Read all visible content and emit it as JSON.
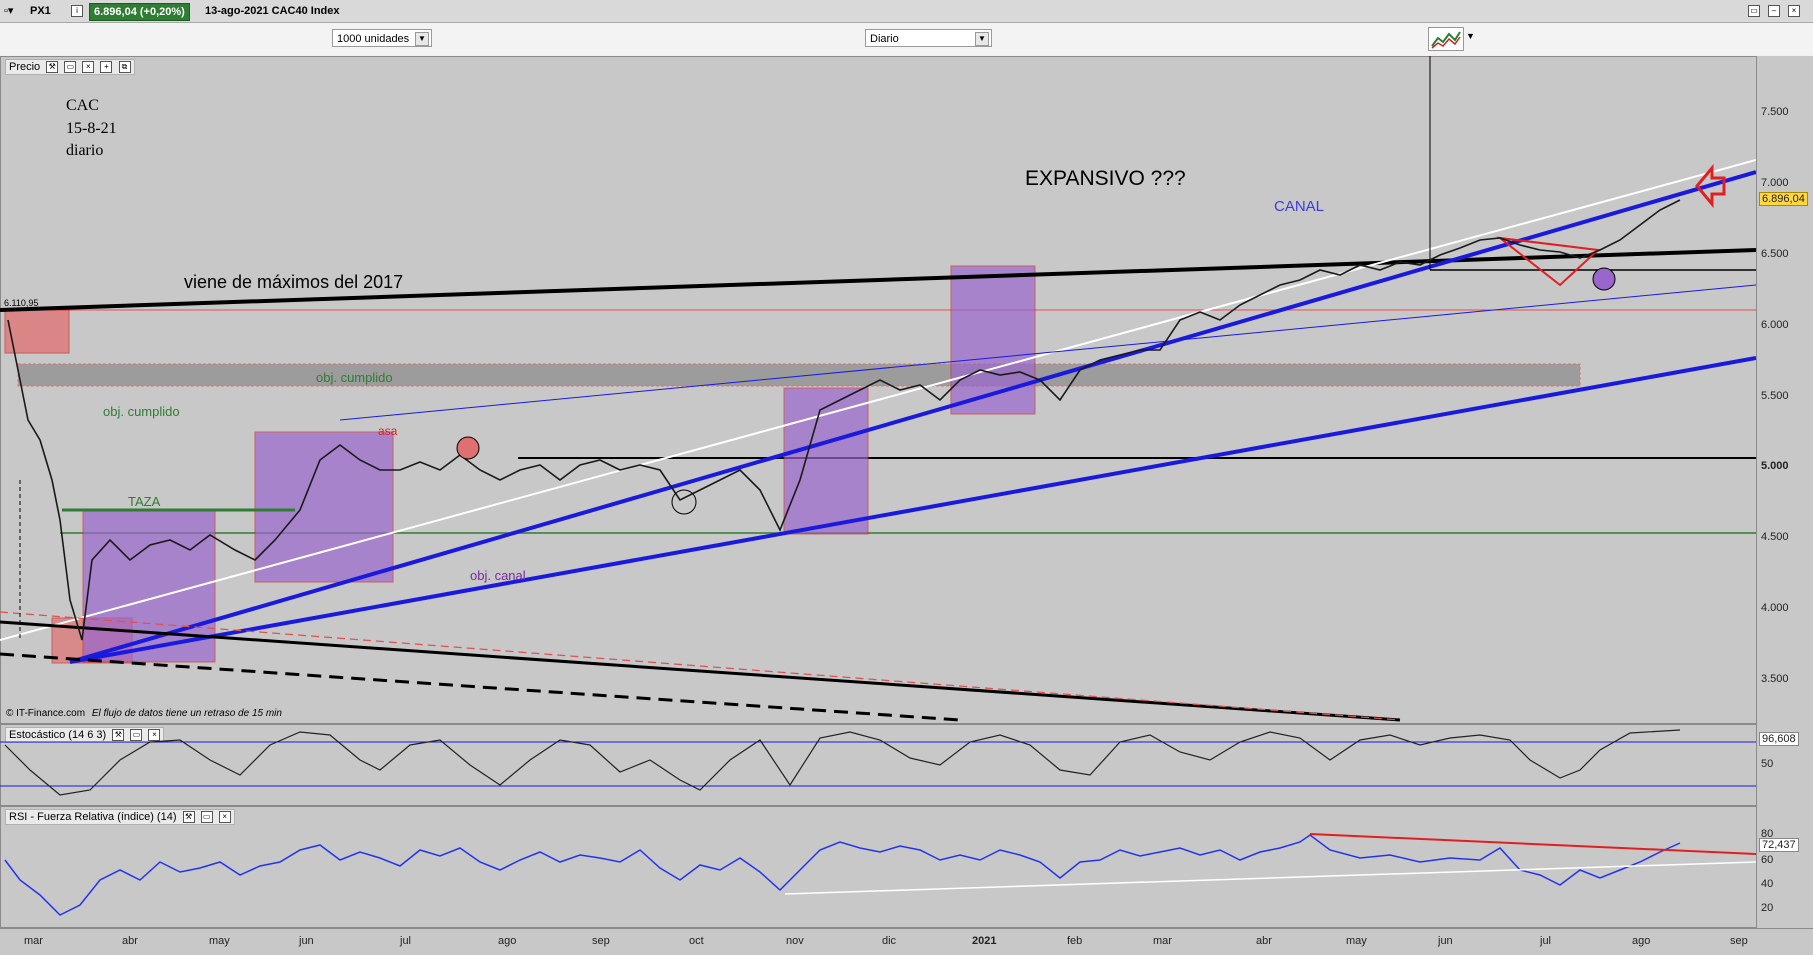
{
  "titlebar": {
    "ticker": "PX1",
    "price": "6.896,04 (+0,20%)",
    "date_index": "13-ago-2021 CAC40 Index"
  },
  "toolbar": {
    "units_value": "1000 unidades",
    "period_value": "Diario"
  },
  "price_panel": {
    "header": "Precio",
    "copyright": "© IT-Finance.com",
    "delay_note": "El flujo de datos tiene un retraso de 15 min",
    "last_value": "6.896,04",
    "level_label": "6.110,95",
    "y_ticks": [
      "7.500",
      "7.000",
      "6.500",
      "6.000",
      "5.500",
      "5.000",
      "4.500",
      "4.000",
      "3.500"
    ],
    "annotations": {
      "cac": "CAC",
      "date": "15-8-21",
      "freq": "diario",
      "expansivo": "EXPANSIVO ???",
      "canal": "CANAL",
      "viene": "viene de máximos del 2017",
      "obj1": "obj. cumplido",
      "obj2": "obj. cumplido",
      "taza": "TAZA",
      "asa": "asa",
      "obj_canal": "obj. canal"
    }
  },
  "stoch_panel": {
    "header": "Estocástico (14 6 3)",
    "value": "96,608",
    "ticks": [
      "50"
    ]
  },
  "rsi_panel": {
    "header": "RSI - Fuerza Relativa (índice) (14)",
    "value": "72,437",
    "ticks": [
      "80",
      "60",
      "40",
      "20"
    ]
  },
  "x_axis": [
    "mar",
    "abr",
    "may",
    "jun",
    "jul",
    "ago",
    "sep",
    "oct",
    "nov",
    "dic",
    "2021",
    "feb",
    "mar",
    "abr",
    "may",
    "jun",
    "jul",
    "ago",
    "sep"
  ],
  "colors": {
    "chart_bg": "#c8c8c8",
    "channel_blue": "#1a1adf",
    "box_purple": "#9966cc",
    "box_red": "#e07070",
    "positive": "#2e7d32"
  }
}
